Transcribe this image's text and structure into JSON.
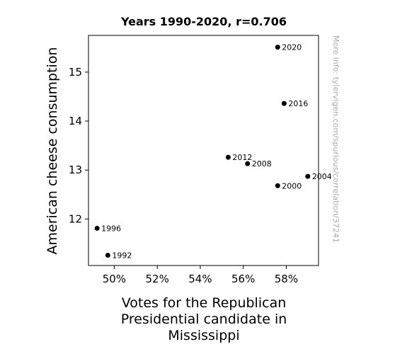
{
  "chart_data": {
    "type": "scatter",
    "title": "Years 1990-2020, r=0.706",
    "xlabel": "Votes for the Republican Presidential candidate in Mississippi",
    "ylabel": "American cheese consumption",
    "xlim": [
      48.8,
      59.5
    ],
    "ylim": [
      11.05,
      15.75
    ],
    "x_ticks": [
      50,
      52,
      54,
      56,
      58
    ],
    "x_tick_labels": [
      "50%",
      "52%",
      "54%",
      "56%",
      "58%"
    ],
    "y_ticks": [
      12,
      13,
      14,
      15
    ],
    "y_tick_labels": [
      "12",
      "13",
      "14",
      "15"
    ],
    "grid": false,
    "points": [
      {
        "label": "1992",
        "x": 49.7,
        "y": 11.26
      },
      {
        "label": "1996",
        "x": 49.2,
        "y": 11.81
      },
      {
        "label": "2000",
        "x": 57.6,
        "y": 12.68
      },
      {
        "label": "2004",
        "x": 59.0,
        "y": 12.87
      },
      {
        "label": "2008",
        "x": 56.2,
        "y": 13.13
      },
      {
        "label": "2012",
        "x": 55.3,
        "y": 13.26
      },
      {
        "label": "2016",
        "x": 57.9,
        "y": 14.36
      },
      {
        "label": "2020",
        "x": 57.6,
        "y": 15.51
      }
    ]
  },
  "watermark": "More info: tylervigen.com/spurious/correlation/37241",
  "colors": {
    "marker": "#000000",
    "watermark": "#aaaaaa",
    "axis": "#000000"
  }
}
